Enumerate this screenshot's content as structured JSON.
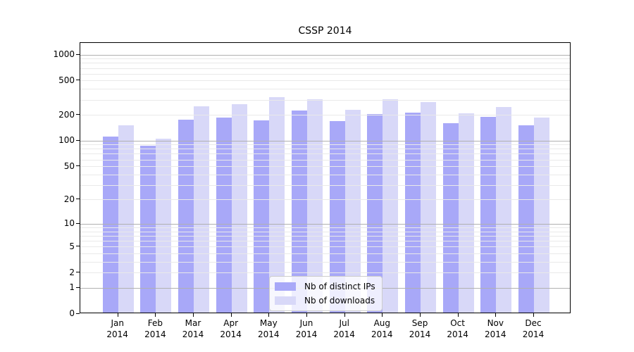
{
  "title": "CSSP 2014",
  "legend": {
    "items": [
      {
        "label": "Nb of distinct IPs",
        "color": "#a8a8f8"
      },
      {
        "label": "Nb of downloads",
        "color": "#d8d8f8"
      }
    ]
  },
  "chart_data": {
    "type": "bar",
    "title": "CSSP 2014",
    "categories": [
      "Jan",
      "Feb",
      "Mar",
      "Apr",
      "May",
      "Jun",
      "Jul",
      "Aug",
      "Sep",
      "Oct",
      "Nov",
      "Dec"
    ],
    "year": "2014",
    "series": [
      {
        "name": "Nb of distinct IPs",
        "color": "#a8a8f8",
        "values": [
          108,
          84,
          172,
          179,
          168,
          220,
          165,
          198,
          205,
          155,
          183,
          147
        ]
      },
      {
        "name": "Nb of downloads",
        "color": "#d8d8f8",
        "values": [
          147,
          103,
          245,
          257,
          312,
          293,
          223,
          295,
          273,
          203,
          241,
          180
        ]
      }
    ],
    "xlabel": "",
    "ylabel": "",
    "y_scale": "log10(value+1)",
    "y_ticks": [
      0,
      1,
      2,
      5,
      10,
      20,
      50,
      100,
      200,
      500,
      1000
    ],
    "ylim": [
      0,
      1380
    ],
    "grid": "major lines at 1,10,100,1000; log minor lines 2-9,20-90,200-900",
    "legend_position": "lower center"
  },
  "colors": {
    "bar_distinct_ips": "#a8a8f8",
    "bar_downloads": "#d8d8f8",
    "grid_major": "#b0b0b0",
    "grid_minor": "#e9e9e9",
    "axis": "#000000",
    "text": "#000000",
    "legend_bg": "rgba(255,255,255,0.8)",
    "legend_border": "#cccccc",
    "background": "#ffffff"
  }
}
